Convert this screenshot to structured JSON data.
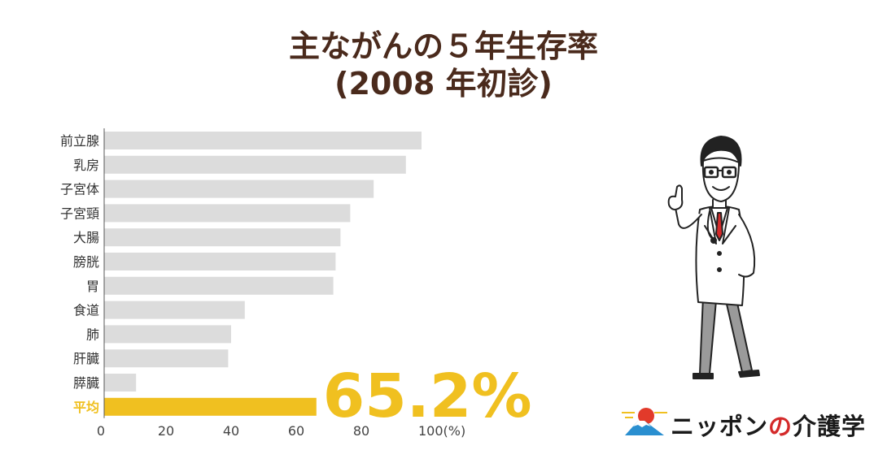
{
  "title": {
    "line1": "主ながんの５年生存率",
    "line2": "(2008 年初診)"
  },
  "chart_data": {
    "type": "bar",
    "orientation": "horizontal",
    "title": "主ながんの５年生存率(2008 年初診)",
    "categories": [
      "前立腺",
      "乳房",
      "子宮体",
      "子宮頸",
      "大腸",
      "膀胱",
      "胃",
      "食道",
      "肺",
      "肝臓",
      "膵臓",
      "平均"
    ],
    "values": [
      97.5,
      92.7,
      82.8,
      75.6,
      72.6,
      71.1,
      70.4,
      43.2,
      39.0,
      38.1,
      9.8,
      65.2
    ],
    "highlight_category": "平均",
    "highlight_label": "65.2%",
    "xlim": [
      0,
      100
    ],
    "xticks": [
      "0",
      "20",
      "40",
      "60",
      "80",
      "100(%)"
    ],
    "tick_values": [
      0,
      20,
      40,
      60,
      80,
      100
    ],
    "grid": false,
    "colors": {
      "bar": "#dcdcdc",
      "highlight": "#f0c020"
    }
  },
  "logo": {
    "text_a": "ニッポン",
    "text_b": "の",
    "text_c": "介護学"
  }
}
